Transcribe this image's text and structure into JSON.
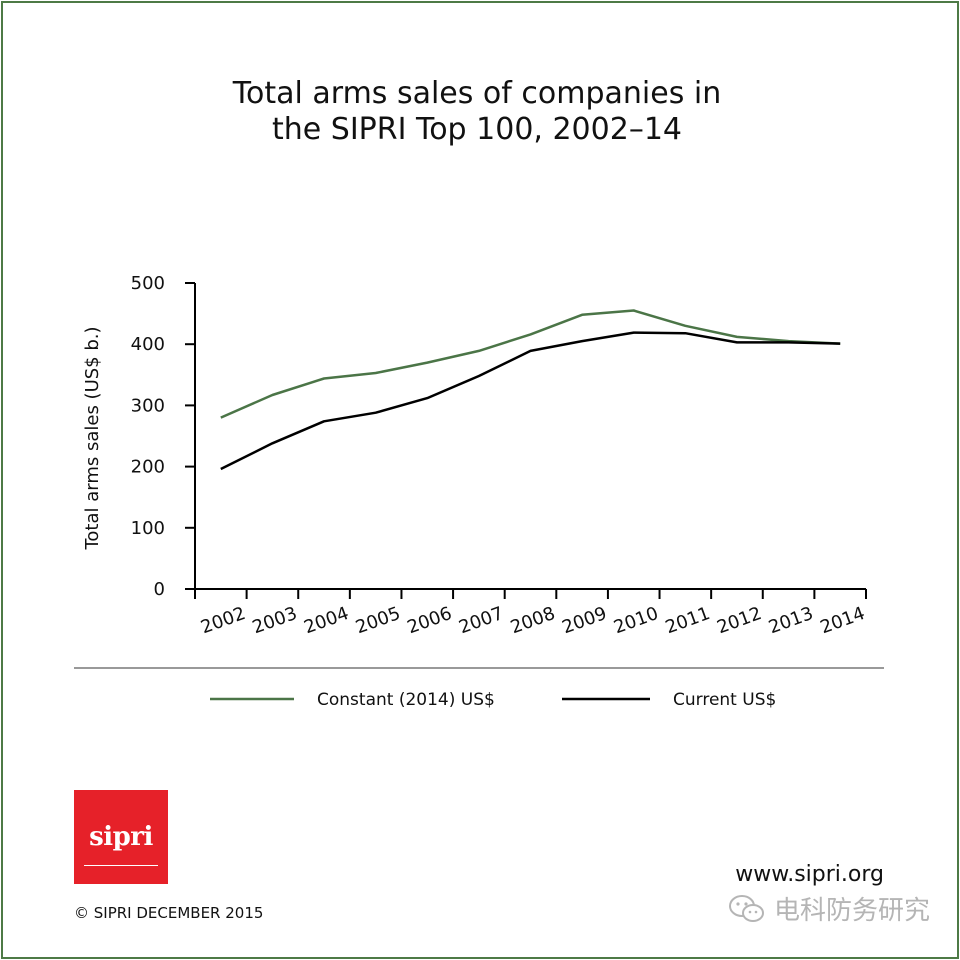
{
  "colors": {
    "constant": "#4b7547",
    "current": "#000000",
    "brand": "#e62129",
    "border": "#4e7a46"
  },
  "chart_data": {
    "type": "line",
    "title": [
      "Total arms sales of companies in",
      "the SIPRI Top 100, 2002–14"
    ],
    "ylabel": "Total arms sales (US$ b.)",
    "xlabel": "",
    "ylim": [
      0,
      500
    ],
    "yticks": [
      "0",
      "100",
      "200",
      "300",
      "400",
      "500"
    ],
    "categories": [
      "2002",
      "2003",
      "2004",
      "2005",
      "2006",
      "2007",
      "2008",
      "2009",
      "2010",
      "2011",
      "2012",
      "2013",
      "2014"
    ],
    "series": [
      {
        "name": "Constant (2014) US$",
        "values": [
          280,
          317,
          344,
          353,
          370,
          389,
          416,
          448,
          455,
          430,
          412,
          405,
          401
        ]
      },
      {
        "name": "Current US$",
        "values": [
          196,
          238,
          274,
          288,
          312,
          348,
          389,
          405,
          419,
          418,
          403,
          403,
          401
        ]
      }
    ],
    "legend_position": "bottom",
    "grid": false
  },
  "footer": {
    "logo_text": "sipri",
    "website": "www.sipri.org",
    "copyright": "© SIPRI DECEMBER 2015",
    "watermark": "电科防务研究",
    "watermark_icon": "wechat-icon"
  }
}
